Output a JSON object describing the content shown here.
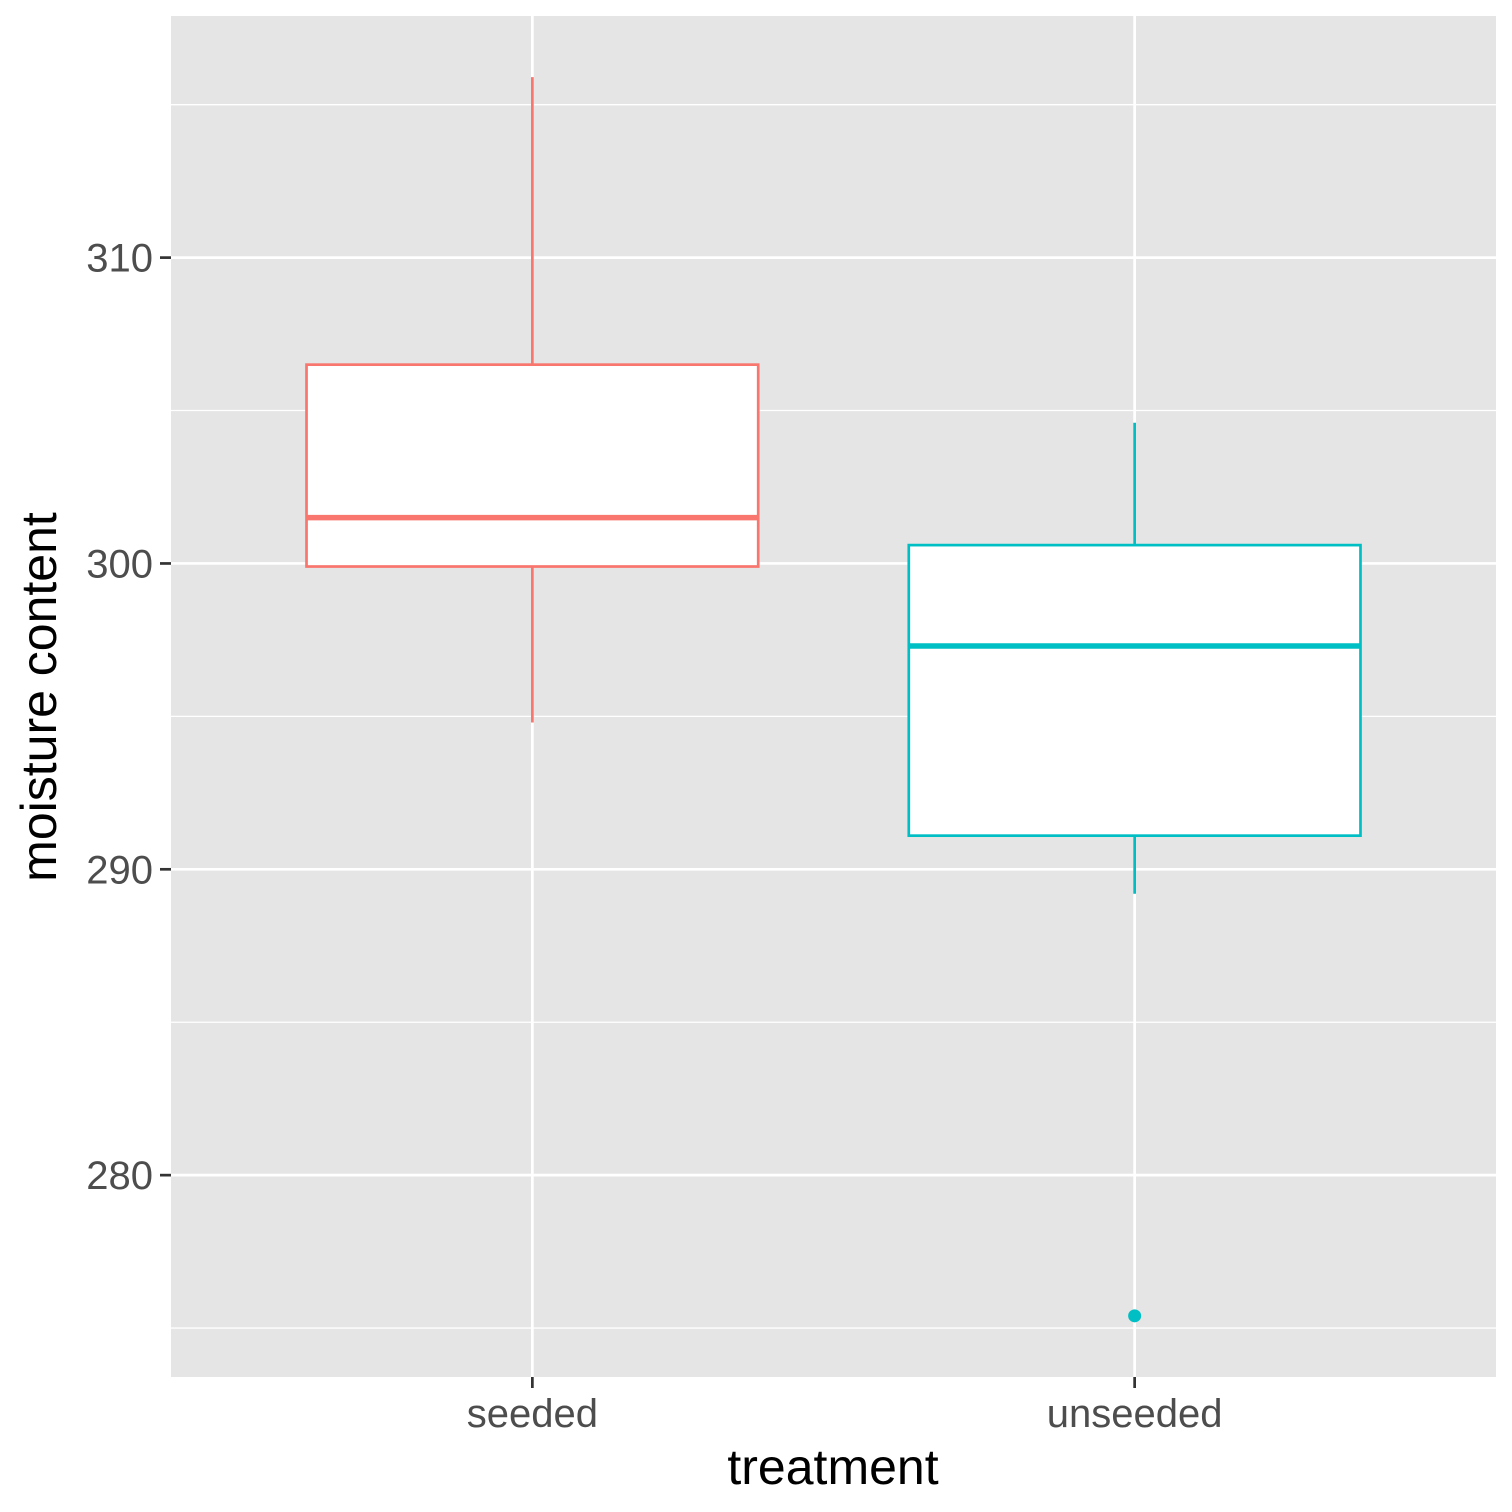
{
  "chart_data": {
    "type": "boxplot",
    "title": "",
    "xlabel": "treatment",
    "ylabel": "moisture content",
    "categories": [
      "seeded",
      "unseeded"
    ],
    "ylim": [
      273.4,
      317.9
    ],
    "y_ticks": [
      280,
      290,
      300,
      310
    ],
    "y_tick_labels": [
      "280",
      "290",
      "300",
      "310"
    ],
    "grid": true,
    "legend": "none",
    "background_color": "#E5E5E5",
    "grid_color": "#FFFFFF",
    "series": [
      {
        "category": "seeded",
        "color": "#F8766D",
        "whisker_low": 294.8,
        "q1": 299.9,
        "median": 301.5,
        "q3": 306.5,
        "whisker_high": 315.9,
        "outliers": []
      },
      {
        "category": "unseeded",
        "color": "#00BFC4",
        "whisker_low": 289.2,
        "q1": 291.1,
        "median": 297.3,
        "q3": 300.6,
        "whisker_high": 304.6,
        "outliers": [
          275.4
        ]
      }
    ]
  }
}
